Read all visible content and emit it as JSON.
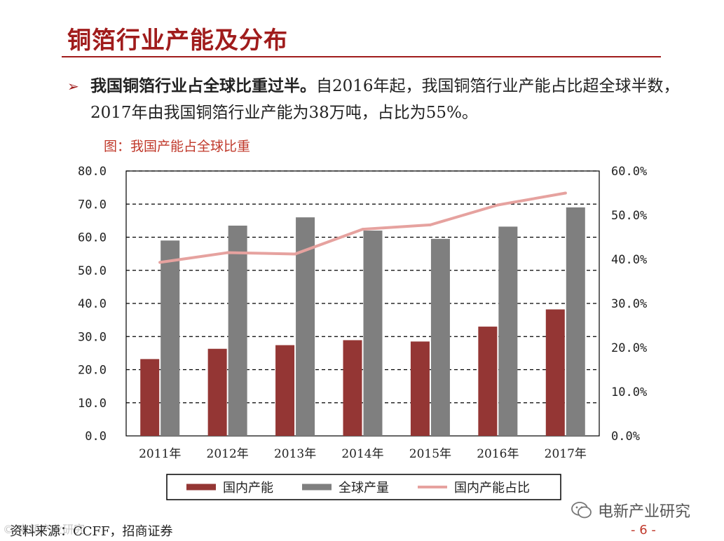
{
  "slide": {
    "title": "铜箔行业产能及分布",
    "bullet_mark": "➢",
    "bullet_bold": "我国铜箔行业占全球比重过半。",
    "bullet_rest": "自2016年起，我国铜箔行业产能占比超全球半数，2017年由我国铜箔行业产能为38万吨，占比为55%。",
    "figure_caption": "图：我国产能占全球比重",
    "source": "资料来源：CCFF，招商证券",
    "brand": "电新产业研究",
    "page_number": "- 6 -",
    "watermark": "© 电新产业研究"
  },
  "colors": {
    "accent": "#a01c1c",
    "domestic_bar": "#943634",
    "global_bar": "#7f7f7f",
    "share_line": "#e6a29f"
  },
  "chart_data": {
    "type": "bar",
    "categories": [
      "2011年",
      "2012年",
      "2013年",
      "2014年",
      "2015年",
      "2016年",
      "2017年"
    ],
    "series": [
      {
        "name": "国内产能",
        "kind": "bar",
        "axis": "left",
        "values": [
          23.2,
          26.3,
          27.4,
          28.9,
          28.5,
          33.0,
          38.2
        ]
      },
      {
        "name": "全球产量",
        "kind": "bar",
        "axis": "left",
        "values": [
          59.0,
          63.5,
          66.0,
          62.0,
          59.5,
          63.2,
          69.0
        ]
      },
      {
        "name": "国内产能占比",
        "kind": "line",
        "axis": "right",
        "values": [
          39.3,
          41.5,
          41.2,
          46.8,
          47.8,
          52.3,
          55.0
        ]
      }
    ],
    "left_axis": {
      "min": 0,
      "max": 80,
      "step": 10,
      "tick_labels": [
        "0.0",
        "10.0",
        "20.0",
        "30.0",
        "40.0",
        "50.0",
        "60.0",
        "70.0",
        "80.0"
      ]
    },
    "right_axis": {
      "min": 0,
      "max": 60,
      "step": 10,
      "tick_labels": [
        "0.0%",
        "10.0%",
        "20.0%",
        "30.0%",
        "40.0%",
        "50.0%",
        "60.0%"
      ]
    },
    "grid": "dashed horizontal",
    "legend_position": "bottom"
  }
}
